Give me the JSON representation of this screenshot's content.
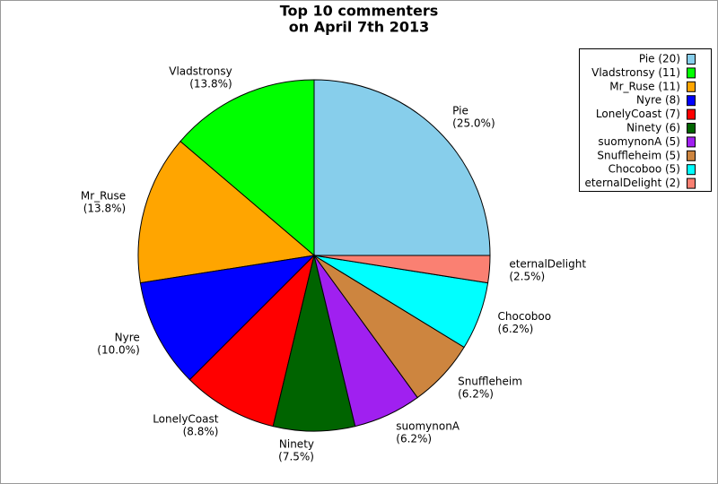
{
  "chart_data": {
    "type": "pie",
    "title": [
      "Top 10 commenters",
      "on April 7th 2013"
    ],
    "categories": [
      "Pie",
      "Vladstronsy",
      "Mr_Ruse",
      "Nyre",
      "LonelyCoast",
      "Ninety",
      "suomynonA",
      "Snuffleheim",
      "Chocoboo",
      "eternalDelight"
    ],
    "values": [
      20,
      11,
      11,
      8,
      7,
      6,
      5,
      5,
      5,
      2
    ],
    "percent_labels": [
      "(25.0%)",
      "(13.8%)",
      "(13.8%)",
      "(10.0%)",
      "(8.8%)",
      "(7.5%)",
      "(6.2%)",
      "(6.2%)",
      "(6.2%)",
      "(2.5%)"
    ],
    "legend_labels": [
      "Pie (20)",
      "Vladstronsy (11)",
      "Mr_Ruse (11)",
      "Nyre (8)",
      "LonelyCoast (7)",
      "Ninety (6)",
      "suomynonA (5)",
      "Snuffleheim (5)",
      "Chocoboo (5)",
      "eternalDelight (2)"
    ],
    "colors": [
      "#87ceeb",
      "#00ff00",
      "#ffa500",
      "#0000ff",
      "#ff0000",
      "#006400",
      "#a020f0",
      "#cd853f",
      "#00ffff",
      "#fa8072"
    ],
    "legend": "upper right"
  }
}
